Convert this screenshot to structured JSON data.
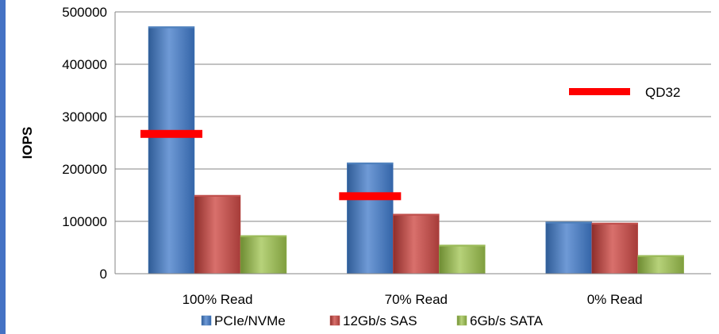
{
  "chart_data": {
    "type": "bar",
    "ylabel": "IOPS",
    "ylim": [
      0,
      500000
    ],
    "yticks": [
      0,
      100000,
      200000,
      300000,
      400000,
      500000
    ],
    "categories": [
      "100% Read",
      "70% Read",
      "0% Read"
    ],
    "series": [
      {
        "name": "PCIe/NVMe",
        "color": "#4f81bd",
        "values": [
          472000,
          212000,
          99000
        ]
      },
      {
        "name": "12Gb/s SAS",
        "color": "#c0504d",
        "values": [
          150000,
          114000,
          97000
        ]
      },
      {
        "name": "6Gb/s SATA",
        "color": "#9bbb59",
        "values": [
          73000,
          55000,
          35000
        ]
      }
    ],
    "reference_markers": {
      "name": "QD32",
      "color": "#ff0000",
      "points": [
        {
          "category": "100% Read",
          "value": 267000
        },
        {
          "category": "70% Read",
          "value": 148000
        }
      ]
    },
    "grid": "horizontal",
    "legend_position": "bottom"
  }
}
